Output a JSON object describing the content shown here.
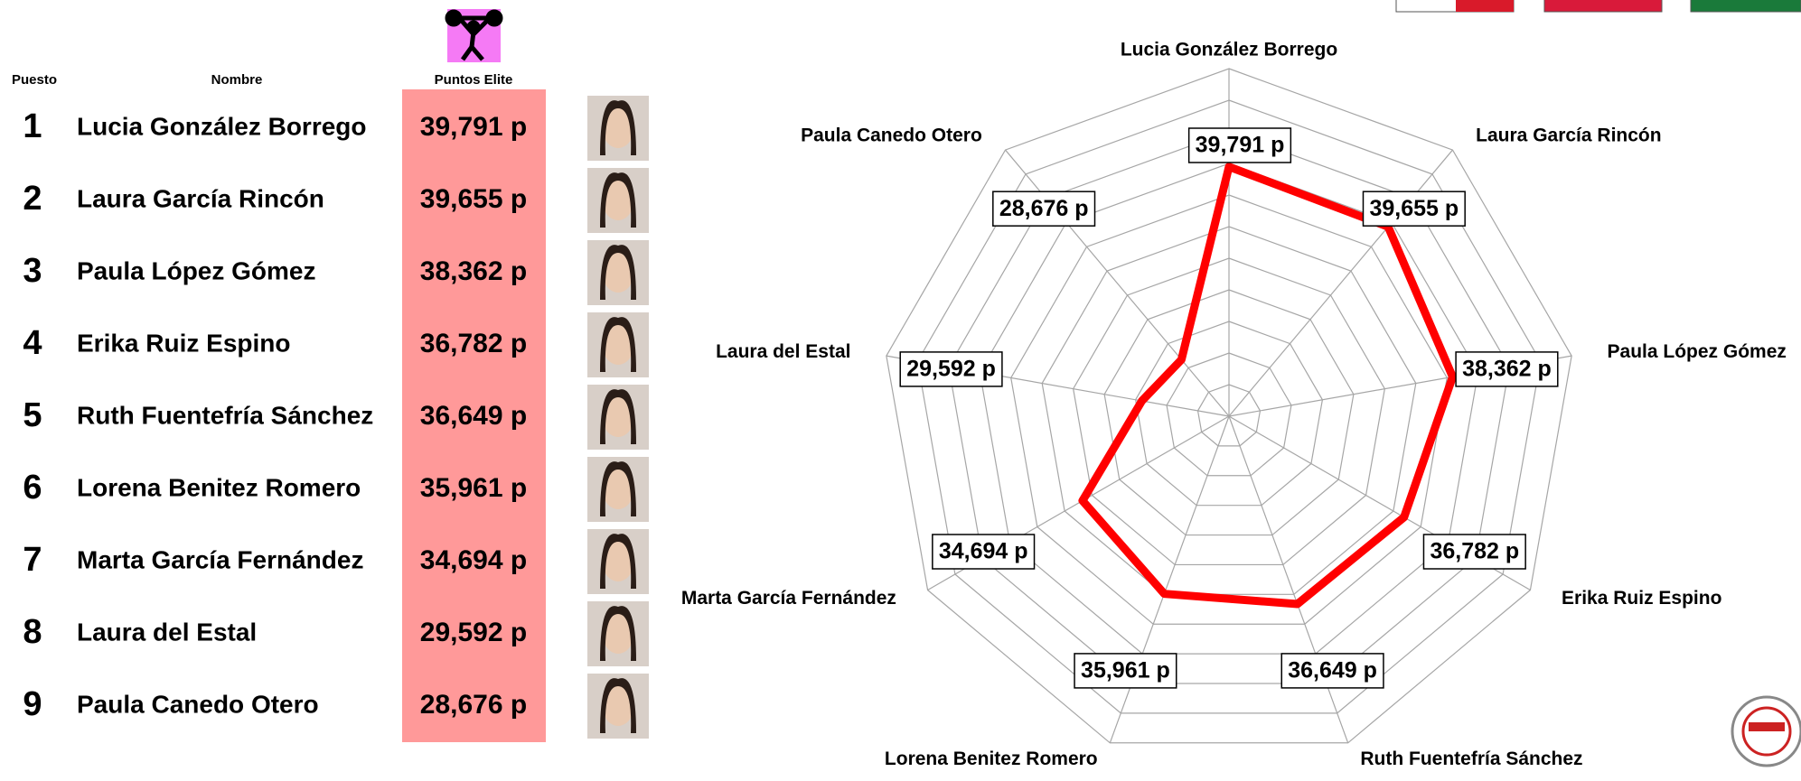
{
  "table": {
    "headers": [
      "Puesto",
      "Nombre",
      "Puntos Elite"
    ],
    "rows": [
      [
        "1",
        "Lucia González Borrego",
        "39,791 p"
      ],
      [
        "2",
        "Laura García Rincón",
        "39,655 p"
      ],
      [
        "3",
        "Paula López Gómez",
        "38,362 p"
      ],
      [
        "4",
        "Erika Ruiz Espino",
        "36,782 p"
      ],
      [
        "5",
        "Ruth Fuentefría Sánchez",
        "36,649 p"
      ],
      [
        "6",
        "Lorena Benitez Romero",
        "35,961 p"
      ],
      [
        "7",
        "Marta García Fernández",
        "34,694 p"
      ],
      [
        "8",
        "Laura del Estal",
        "29,592 p"
      ],
      [
        "9",
        "Paula Canedo Otero",
        "28,676 p"
      ]
    ]
  },
  "chart_data": {
    "type": "radar",
    "categories": [
      "Lucia González Borrego",
      "Laura García Rincón",
      "Paula López Gómez",
      "Erika Ruiz Espino",
      "Ruth Fuentefría Sánchez",
      "Lorena Benitez Romero",
      "Marta García Fernández",
      "Laura del Estal",
      "Paula Canedo Otero"
    ],
    "values": [
      39.791,
      39.655,
      38.362,
      36.782,
      36.649,
      35.961,
      34.694,
      29.592,
      28.676
    ],
    "value_labels": [
      "39,791 p",
      "39,655 p",
      "38,362 p",
      "36,782 p",
      "36,649 p",
      "35,961 p",
      "34,694 p",
      "29,592 p",
      "28,676 p"
    ],
    "color": "#ff0000",
    "rlim": [
      24,
      46
    ],
    "rticks": [
      26,
      28,
      30,
      32,
      34,
      36,
      38,
      40,
      42,
      44,
      46
    ],
    "grid": true
  }
}
